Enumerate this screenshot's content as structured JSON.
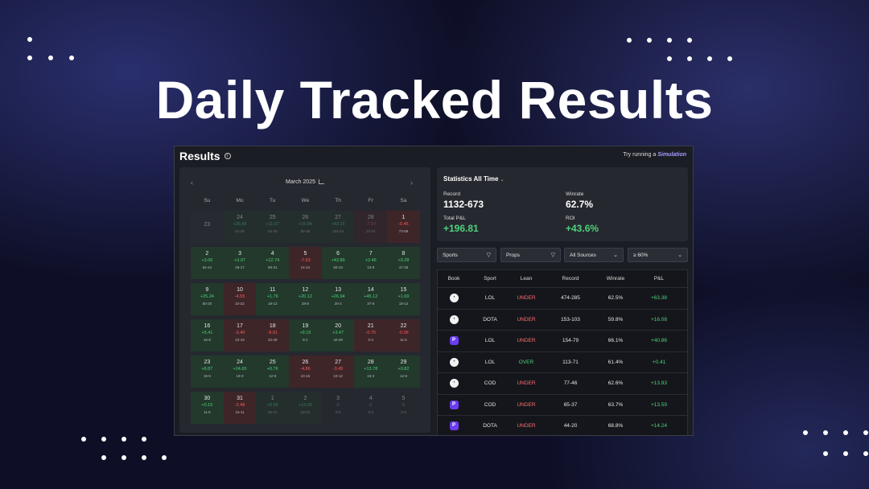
{
  "headline": "Daily Tracked Results",
  "panel": {
    "title": "Results",
    "cta_text": "Try running a",
    "cta_link": "Simulation"
  },
  "calendar": {
    "month": "March 2025",
    "weekdays": [
      "Su",
      "Mo",
      "Tu",
      "We",
      "Th",
      "Fr",
      "Sa"
    ],
    "weeks": [
      [
        {
          "day": "23",
          "pl": "",
          "rec": "",
          "status": "neutral",
          "dim": true
        },
        {
          "day": "24",
          "pl": "+26.88",
          "rec": "51-35",
          "status": "win",
          "dim": true
        },
        {
          "day": "25",
          "pl": "+11.07",
          "rec": "54-30",
          "status": "win",
          "dim": true
        },
        {
          "day": "26",
          "pl": "+15.84",
          "rec": "59-36",
          "status": "win",
          "dim": true
        },
        {
          "day": "27",
          "pl": "+43.15",
          "rec": "104-44",
          "status": "win",
          "dim": true
        },
        {
          "day": "28",
          "pl": "-7.07",
          "rec": "23-37",
          "status": "loss",
          "dim": true
        },
        {
          "day": "1",
          "pl": "-0.45",
          "rec": "73-58",
          "status": "loss",
          "dim": false
        }
      ],
      [
        {
          "day": "2",
          "pl": "+3.06",
          "rec": "62-44",
          "status": "win",
          "dim": false
        },
        {
          "day": "3",
          "pl": "+3.07",
          "rec": "28-17",
          "status": "win",
          "dim": false
        },
        {
          "day": "4",
          "pl": "+12.74",
          "rec": "58-31",
          "status": "win",
          "dim": false
        },
        {
          "day": "5",
          "pl": "-7.63",
          "rec": "14-24",
          "status": "loss",
          "dim": false
        },
        {
          "day": "6",
          "pl": "+43.89",
          "rec": "50-13",
          "status": "win",
          "dim": false
        },
        {
          "day": "7",
          "pl": "+2.46",
          "rec": "13-8",
          "status": "win",
          "dim": false
        },
        {
          "day": "8",
          "pl": "+0.28",
          "rec": "47-35",
          "status": "win",
          "dim": false
        }
      ],
      [
        {
          "day": "9",
          "pl": "+25.24",
          "rec": "50-20",
          "status": "win",
          "dim": false
        },
        {
          "day": "10",
          "pl": "-4.55",
          "rec": "22-22",
          "status": "loss",
          "dim": false
        },
        {
          "day": "11",
          "pl": "+1.76",
          "rec": "19-13",
          "status": "win",
          "dim": false
        },
        {
          "day": "12",
          "pl": "+20.12",
          "rec": "28-8",
          "status": "win",
          "dim": false
        },
        {
          "day": "13",
          "pl": "+26.94",
          "rec": "20-2",
          "status": "win",
          "dim": false
        },
        {
          "day": "14",
          "pl": "+45.12",
          "rec": "37-6",
          "status": "win",
          "dim": false
        },
        {
          "day": "15",
          "pl": "+1.69",
          "rec": "18-12",
          "status": "win",
          "dim": false
        }
      ],
      [
        {
          "day": "16",
          "pl": "+5.41",
          "rec": "16-8",
          "status": "win",
          "dim": false
        },
        {
          "day": "17",
          "pl": "-3.40",
          "rec": "23-19",
          "status": "loss",
          "dim": false
        },
        {
          "day": "18",
          "pl": "-9.01",
          "rec": "22-29",
          "status": "loss",
          "dim": false
        },
        {
          "day": "19",
          "pl": "+9.19",
          "rec": "9-1",
          "status": "win",
          "dim": false
        },
        {
          "day": "20",
          "pl": "+3.47",
          "rec": "42-29",
          "status": "win",
          "dim": false
        },
        {
          "day": "21",
          "pl": "-0.75",
          "rec": "0-3",
          "status": "loss",
          "dim": false
        },
        {
          "day": "22",
          "pl": "-0.06",
          "rec": "11-6",
          "status": "loss",
          "dim": false
        }
      ],
      [
        {
          "day": "23",
          "pl": "+8.87",
          "rec": "16-6",
          "status": "win",
          "dim": false
        },
        {
          "day": "24",
          "pl": "+24.65",
          "rec": "19-3",
          "status": "win",
          "dim": false
        },
        {
          "day": "25",
          "pl": "+0.76",
          "rec": "12-8",
          "status": "win",
          "dim": false
        },
        {
          "day": "26",
          "pl": "-4.86",
          "rec": "10-15",
          "status": "loss",
          "dim": false
        },
        {
          "day": "27",
          "pl": "-3.45",
          "rec": "10-12",
          "status": "loss",
          "dim": false
        },
        {
          "day": "28",
          "pl": "+13.78",
          "rec": "15-3",
          "status": "win",
          "dim": false
        },
        {
          "day": "29",
          "pl": "+0.82",
          "rec": "12-8",
          "status": "win",
          "dim": false
        }
      ],
      [
        {
          "day": "30",
          "pl": "+0.15",
          "rec": "11-8",
          "status": "win",
          "dim": false
        },
        {
          "day": "31",
          "pl": "-2.48",
          "rec": "15-11",
          "status": "loss",
          "dim": false
        },
        {
          "day": "1",
          "pl": "+8.58",
          "rec": "26-12",
          "status": "win",
          "dim": true
        },
        {
          "day": "2",
          "pl": "+14.39",
          "rec": "43-22",
          "status": "win",
          "dim": true
        },
        {
          "day": "3",
          "pl": "0",
          "rec": "0-0",
          "status": "empty",
          "dim": true
        },
        {
          "day": "4",
          "pl": "0",
          "rec": "0-0",
          "status": "empty",
          "dim": true
        },
        {
          "day": "5",
          "pl": "0",
          "rec": "0-0",
          "status": "empty",
          "dim": true
        }
      ]
    ]
  },
  "stats": {
    "title": "Statistics All Time",
    "record_label": "Record",
    "record_value": "1132-673",
    "winrate_label": "Winrate",
    "winrate_value": "62.7%",
    "pl_label": "Total P&L",
    "pl_value": "+196.81",
    "roi_label": "ROI",
    "roi_value": "+43.6%"
  },
  "filters": {
    "sports": "Sports",
    "props": "Props",
    "sources": "All Sources",
    "threshold": "≥ 60%"
  },
  "table": {
    "headers": [
      "Book",
      "Sport",
      "Lean",
      "Record",
      "Winrate",
      "P&L"
    ],
    "rows": [
      {
        "book": "a",
        "sport": "LOL",
        "lean": "UNDER",
        "record": "474-285",
        "winrate": "62.5%",
        "pl": "+63.38"
      },
      {
        "book": "a",
        "sport": "DOTA",
        "lean": "UNDER",
        "record": "153-103",
        "winrate": "59.8%",
        "pl": "+16.08"
      },
      {
        "book": "b",
        "sport": "LOL",
        "lean": "UNDER",
        "record": "154-79",
        "winrate": "66.1%",
        "pl": "+40.86"
      },
      {
        "book": "a",
        "sport": "LOL",
        "lean": "OVER",
        "record": "113-71",
        "winrate": "61.4%",
        "pl": "+0.41"
      },
      {
        "book": "a",
        "sport": "COD",
        "lean": "UNDER",
        "record": "77-46",
        "winrate": "62.6%",
        "pl": "+13.93"
      },
      {
        "book": "b",
        "sport": "COD",
        "lean": "UNDER",
        "record": "65-37",
        "winrate": "63.7%",
        "pl": "+13.59"
      },
      {
        "book": "b",
        "sport": "DOTA",
        "lean": "UNDER",
        "record": "44-20",
        "winrate": "68.8%",
        "pl": "+14.24"
      }
    ]
  }
}
